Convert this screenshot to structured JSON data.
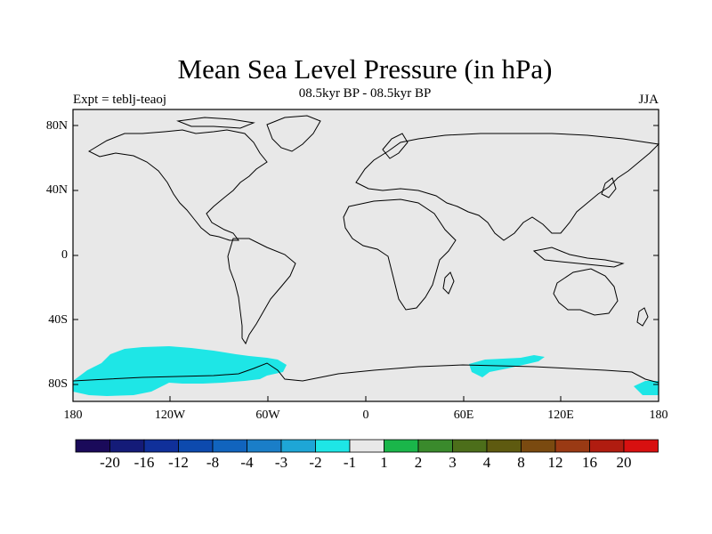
{
  "title": "Mean Sea Level Pressure (in hPa)",
  "subtitle": "08.5kyr BP - 08.5kyr BP",
  "experiment_label": "Expt = teblj-teaoj",
  "season": "JJA",
  "lat_ticks": [
    "80N",
    "40N",
    "0",
    "40S",
    "80S"
  ],
  "lon_ticks": [
    "180",
    "120W",
    "60W",
    "0",
    "60E",
    "120E",
    "180"
  ],
  "colorbar": {
    "colors": [
      "#1a0a5a",
      "#141b78",
      "#10309a",
      "#0d4aae",
      "#1164be",
      "#1a7ec8",
      "#1ea6d6",
      "#1ee6e6",
      "#e8e8e8",
      "#1ab64a",
      "#3a8a2c",
      "#4c6e1a",
      "#5e5a10",
      "#7a4a10",
      "#9a3a14",
      "#b01c10",
      "#d81010"
    ],
    "labels": [
      "-20",
      "-16",
      "-12",
      "-8",
      "-4",
      "-3",
      "-2",
      "-1",
      "1",
      "2",
      "3",
      "4",
      "8",
      "12",
      "16",
      "20"
    ]
  },
  "chart_data": {
    "type": "map",
    "variable": "Mean Sea Level Pressure",
    "units": "hPa",
    "projection": "cylindrical equidistant",
    "lon_range": [
      -180,
      180
    ],
    "lat_range": [
      -90,
      90
    ],
    "background_class": "-1 to 1",
    "highlighted_anomalies": [
      {
        "region": "Southern Ocean, Pacific sector near Antarctica",
        "class": "-2 to -1"
      },
      {
        "region": "Southern Ocean, Indian Ocean sector near Antarctica",
        "class": "-2 to -1"
      },
      {
        "region": "Southern Ocean near 180E",
        "class": "-2 to -1"
      }
    ]
  }
}
